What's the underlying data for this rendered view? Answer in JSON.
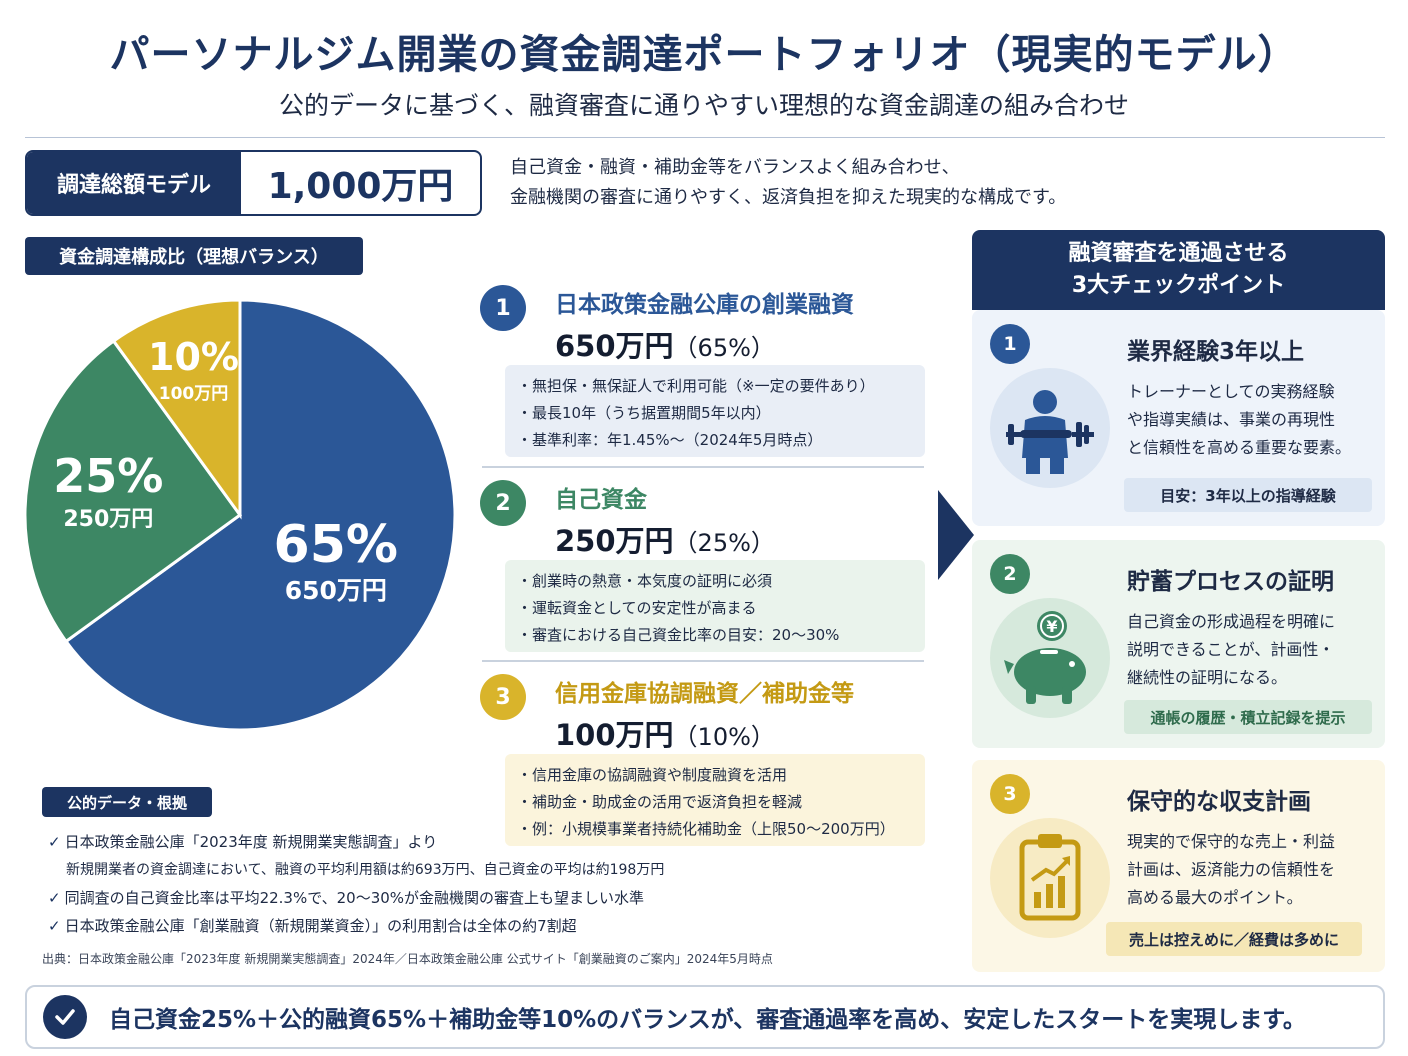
{
  "header": {
    "title": "パーソナルジム開業の資金調達ポートフォリオ（現実的モデル）",
    "subtitle": "公的データに基づく、融資審査に通りやすい理想的な資金調達の組み合わせ"
  },
  "total": {
    "label": "調達総額モデル",
    "value": "1,000万円"
  },
  "intro": [
    "自己資金・融資・補助金等をバランスよく組み合わせ、",
    "金融機関の審査に通りやすく、返済負担を抑えた現実的な構成です。"
  ],
  "chart_tag": "資金調達構成比（理想バランス）",
  "chart_data": {
    "type": "pie",
    "slices": [
      {
        "value": 65,
        "pct_label": "65%",
        "amount_label": "650万円",
        "color": "#2b5797"
      },
      {
        "value": 25,
        "pct_label": "25%",
        "amount_label": "250万円",
        "color": "#3d8764"
      },
      {
        "value": 10,
        "pct_label": "10%",
        "amount_label": "100万円",
        "color": "#d9b42b"
      }
    ]
  },
  "sources": [
    {
      "num": "1",
      "name": "日本政策金融公庫の創業融資",
      "amount": "650万円",
      "pct": "（65%）",
      "color": "#2b5797",
      "box_bg": "#e9eef6",
      "bullets": [
        "・無担保・無保証人で利用可能（※一定の要件あり）",
        "・最長10年（うち据置期間5年以内）",
        "・基準利率：年1.45%〜（2024年5月時点）"
      ]
    },
    {
      "num": "2",
      "name": "自己資金",
      "amount": "250万円",
      "pct": "（25%）",
      "color": "#3d8764",
      "box_bg": "#eaf3ec",
      "bullets": [
        "・創業時の熱意・本気度の証明に必須",
        "・運転資金としての安定性が高まる",
        "・審査における自己資金比率の目安：20〜30%"
      ]
    },
    {
      "num": "3",
      "name": "信用金庫協調融資／補助金等",
      "amount": "100万円",
      "pct": "（10%）",
      "color": "#d9b42b",
      "box_bg": "#fbf4dc",
      "bullets": [
        "・信用金庫の協調融資や制度融資を活用",
        "・補助金・助成金の活用で返済負担を軽減",
        "・例：小規模事業者持続化補助金（上限50〜200万円）"
      ]
    }
  ],
  "evidence": {
    "tag": "公的データ・根拠",
    "check": "✓",
    "lines": [
      "日本政策金融公庫「2023年度 新規開業実態調査」より",
      "新規開業者の資金調達において、融資の平均利用額は約693万円、自己資金の平均は約198万円",
      "同調査の自己資金比率は平均22.3%で、20〜30%が金融機関の審査上も望ましい水準",
      "日本政策金融公庫「創業融資（新規開業資金）」の利用割合は全体の約7割超"
    ],
    "citation": "出典：日本政策金融公庫「2023年度 新規開業実態調査」2024年／日本政策金融公庫 公式サイト「創業融資のご案内」2024年5月時点"
  },
  "checkpoints": {
    "header": [
      "融資審査を通過させる",
      "3大チェックポイント"
    ],
    "cards": [
      {
        "num": "1",
        "title": "業界経験3年以上",
        "icon": "trainer-icon",
        "desc": [
          "トレーナーとしての実務経験",
          "や指導実績は、事業の再現性",
          "と信頼性を高める重要な要素。"
        ],
        "tip": "目安：3年以上の指導経験",
        "color": "#2b5797",
        "bg": "#eef3fa",
        "circle": "#dce6f3",
        "tip_bg": "#dce6f3",
        "tip_color": "#1e2a44"
      },
      {
        "num": "2",
        "title": "貯蓄プロセスの証明",
        "icon": "piggy-bank-icon",
        "desc": [
          "自己資金の形成過程を明確に",
          "説明できることが、計画性・",
          "継続性の証明になる。"
        ],
        "tip": "通帳の履歴・積立記録を提示",
        "color": "#3d8764",
        "bg": "#edf5ef",
        "circle": "#d6e9dc",
        "tip_bg": "#d6e9dc",
        "tip_color": "#2f6b4c"
      },
      {
        "num": "3",
        "title": "保守的な収支計画",
        "icon": "clipboard-chart-icon",
        "desc": [
          "現実的で保守的な売上・利益",
          "計画は、返済能力の信頼性を",
          "高める最大のポイント。"
        ],
        "tip": "売上は控えめに／経費は多めに",
        "color": "#d9b42b",
        "bg": "#fcf7e6",
        "circle": "#f7ebc4",
        "tip_bg": "#f5e7b6",
        "tip_color": "#1e2a44"
      }
    ]
  },
  "bottom": "自己資金25%＋公的融資65%＋補助金等10%のバランスが、審査通過率を高め、安定したスタートを実現します。"
}
